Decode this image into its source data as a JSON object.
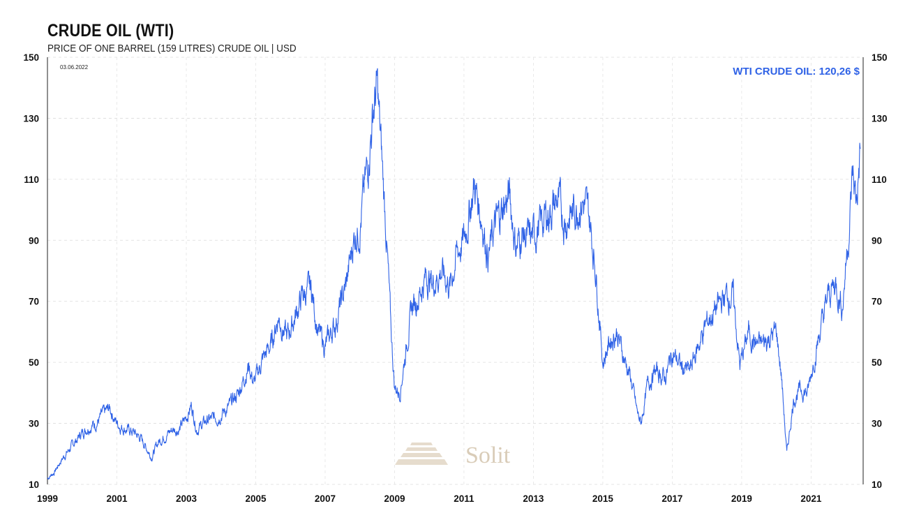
{
  "chart_data": {
    "type": "line",
    "title": "CRUDE OIL (WTI)",
    "subtitle": "PRICE OF ONE BARREL (159 LITRES) CRUDE OIL | USD",
    "date_label": "03.06.2022",
    "readout_label": "WTI CRUDE OIL: 120,26 $",
    "watermark": "Solit",
    "xlim": [
      1999.0,
      2022.5
    ],
    "ylim": [
      10,
      150
    ],
    "x_ticks": [
      1999,
      2001,
      2003,
      2005,
      2007,
      2009,
      2011,
      2013,
      2015,
      2017,
      2019,
      2021
    ],
    "x_tick_labels": [
      "1999",
      "2001",
      "2003",
      "2005",
      "2007",
      "2009",
      "2011",
      "2013",
      "2015",
      "2017",
      "2019",
      "2021"
    ],
    "y_ticks": [
      10,
      30,
      50,
      70,
      90,
      110,
      130,
      150
    ],
    "y_tick_labels": [
      "10",
      "30",
      "50",
      "70",
      "90",
      "110",
      "130",
      "150"
    ],
    "grid": true,
    "line_color": "#2f62e6",
    "series": [
      {
        "x": [
          1999.0,
          1999.2,
          1999.4,
          1999.6,
          1999.8,
          2000.0,
          2000.2,
          2000.4,
          2000.6,
          2000.8,
          2000.95,
          2001.1,
          2001.3,
          2001.5,
          2001.7,
          2001.9,
          2002.0,
          2002.2,
          2002.4,
          2002.6,
          2002.8,
          2003.0,
          2003.15,
          2003.3,
          2003.6,
          2003.9,
          2004.2,
          2004.5,
          2004.8,
          2004.95,
          2005.2,
          2005.45,
          2005.65,
          2005.9,
          2006.1,
          2006.35,
          2006.6,
          2006.8,
          2007.0,
          2007.3,
          2007.6,
          2007.85,
          2008.0,
          2008.2,
          2008.4,
          2008.5,
          2008.6,
          2008.75,
          2008.9,
          2009.0,
          2009.15,
          2009.3,
          2009.5,
          2009.7,
          2009.9,
          2010.1,
          2010.35,
          2010.6,
          2010.8,
          2011.0,
          2011.3,
          2011.5,
          2011.7,
          2011.9,
          2012.1,
          2012.3,
          2012.5,
          2012.7,
          2012.9,
          2013.2,
          2013.5,
          2013.7,
          2013.9,
          2014.1,
          2014.4,
          2014.6,
          2014.8,
          2015.0,
          2015.2,
          2015.4,
          2015.6,
          2015.8,
          2016.0,
          2016.1,
          2016.3,
          2016.5,
          2016.8,
          2017.0,
          2017.3,
          2017.5,
          2017.8,
          2018.0,
          2018.3,
          2018.55,
          2018.75,
          2018.95,
          2019.2,
          2019.4,
          2019.6,
          2019.8,
          2020.0,
          2020.15,
          2020.3,
          2020.5,
          2020.7,
          2020.9,
          2021.1,
          2021.3,
          2021.5,
          2021.7,
          2021.9,
          2022.0,
          2022.1,
          2022.2,
          2022.3,
          2022.42
        ],
        "y": [
          12,
          14,
          18,
          21,
          24,
          27,
          29,
          30,
          33,
          35,
          31,
          29,
          28,
          27,
          25,
          21,
          19,
          24,
          26,
          28,
          28,
          32,
          36,
          28,
          31,
          32,
          35,
          40,
          49,
          43,
          51,
          56,
          65,
          58,
          64,
          72,
          74,
          60,
          55,
          63,
          75,
          92,
          95,
          112,
          134,
          140,
          122,
          95,
          60,
          42,
          40,
          52,
          68,
          72,
          78,
          76,
          80,
          75,
          86,
          90,
          108,
          98,
          85,
          95,
          100,
          105,
          88,
          92,
          90,
          95,
          100,
          103,
          96,
          99,
          103,
          98,
          80,
          50,
          57,
          60,
          52,
          45,
          33,
          30,
          43,
          47,
          45,
          53,
          48,
          47,
          57,
          63,
          68,
          72,
          72,
          49,
          60,
          56,
          56,
          58,
          60,
          45,
          20,
          38,
          41,
          40,
          52,
          62,
          72,
          76,
          68,
          82,
          95,
          112,
          102,
          120
        ]
      }
    ]
  }
}
